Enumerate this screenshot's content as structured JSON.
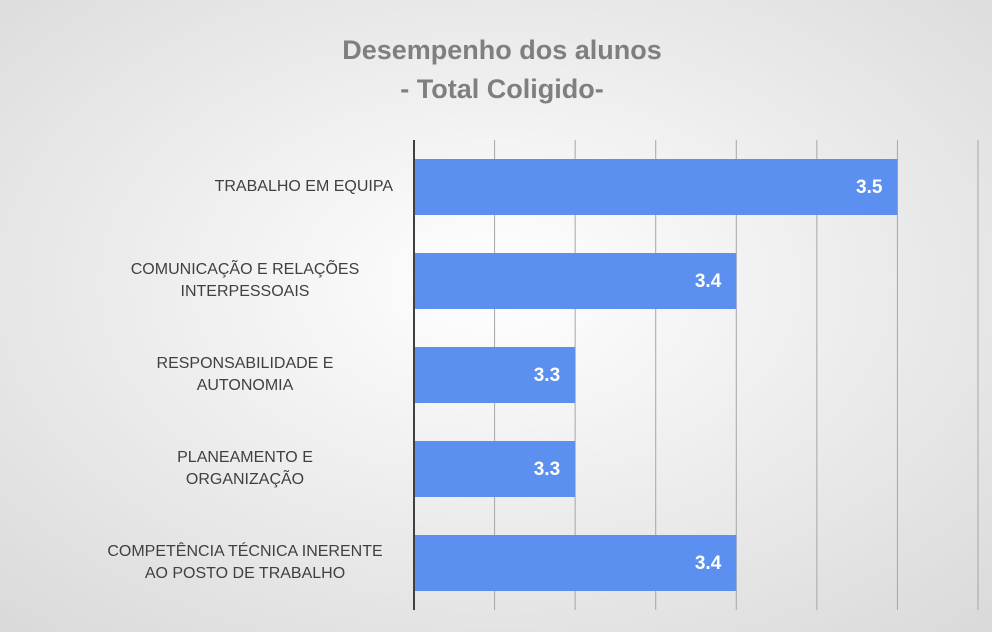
{
  "chart_data": {
    "type": "barh",
    "title": [
      "Desempenho dos alunos",
      "- Total Coligido-"
    ],
    "categories": [
      [
        "TRABALHO  EM EQUIPA"
      ],
      [
        "COMUNICAÇÃO  E RELAÇÕES",
        "INTERPESSOAIS"
      ],
      [
        "RESPONSABILIDADE  E",
        "AUTONOMIA"
      ],
      [
        "PLANEAMENTO  E",
        "ORGANIZAÇÃO"
      ],
      [
        "COMPETÊNCIA  TÉCNICA INERENTE",
        "AO POSTO DE TRABALHO"
      ]
    ],
    "values": [
      3.5,
      3.4,
      3.3,
      3.3,
      3.4
    ],
    "color": "#5b8ff0",
    "xlim": [
      3.2,
      3.55
    ],
    "xticks": [
      3.2,
      3.25,
      3.3,
      3.35,
      3.4,
      3.45,
      3.5,
      3.55
    ],
    "grid": true
  }
}
